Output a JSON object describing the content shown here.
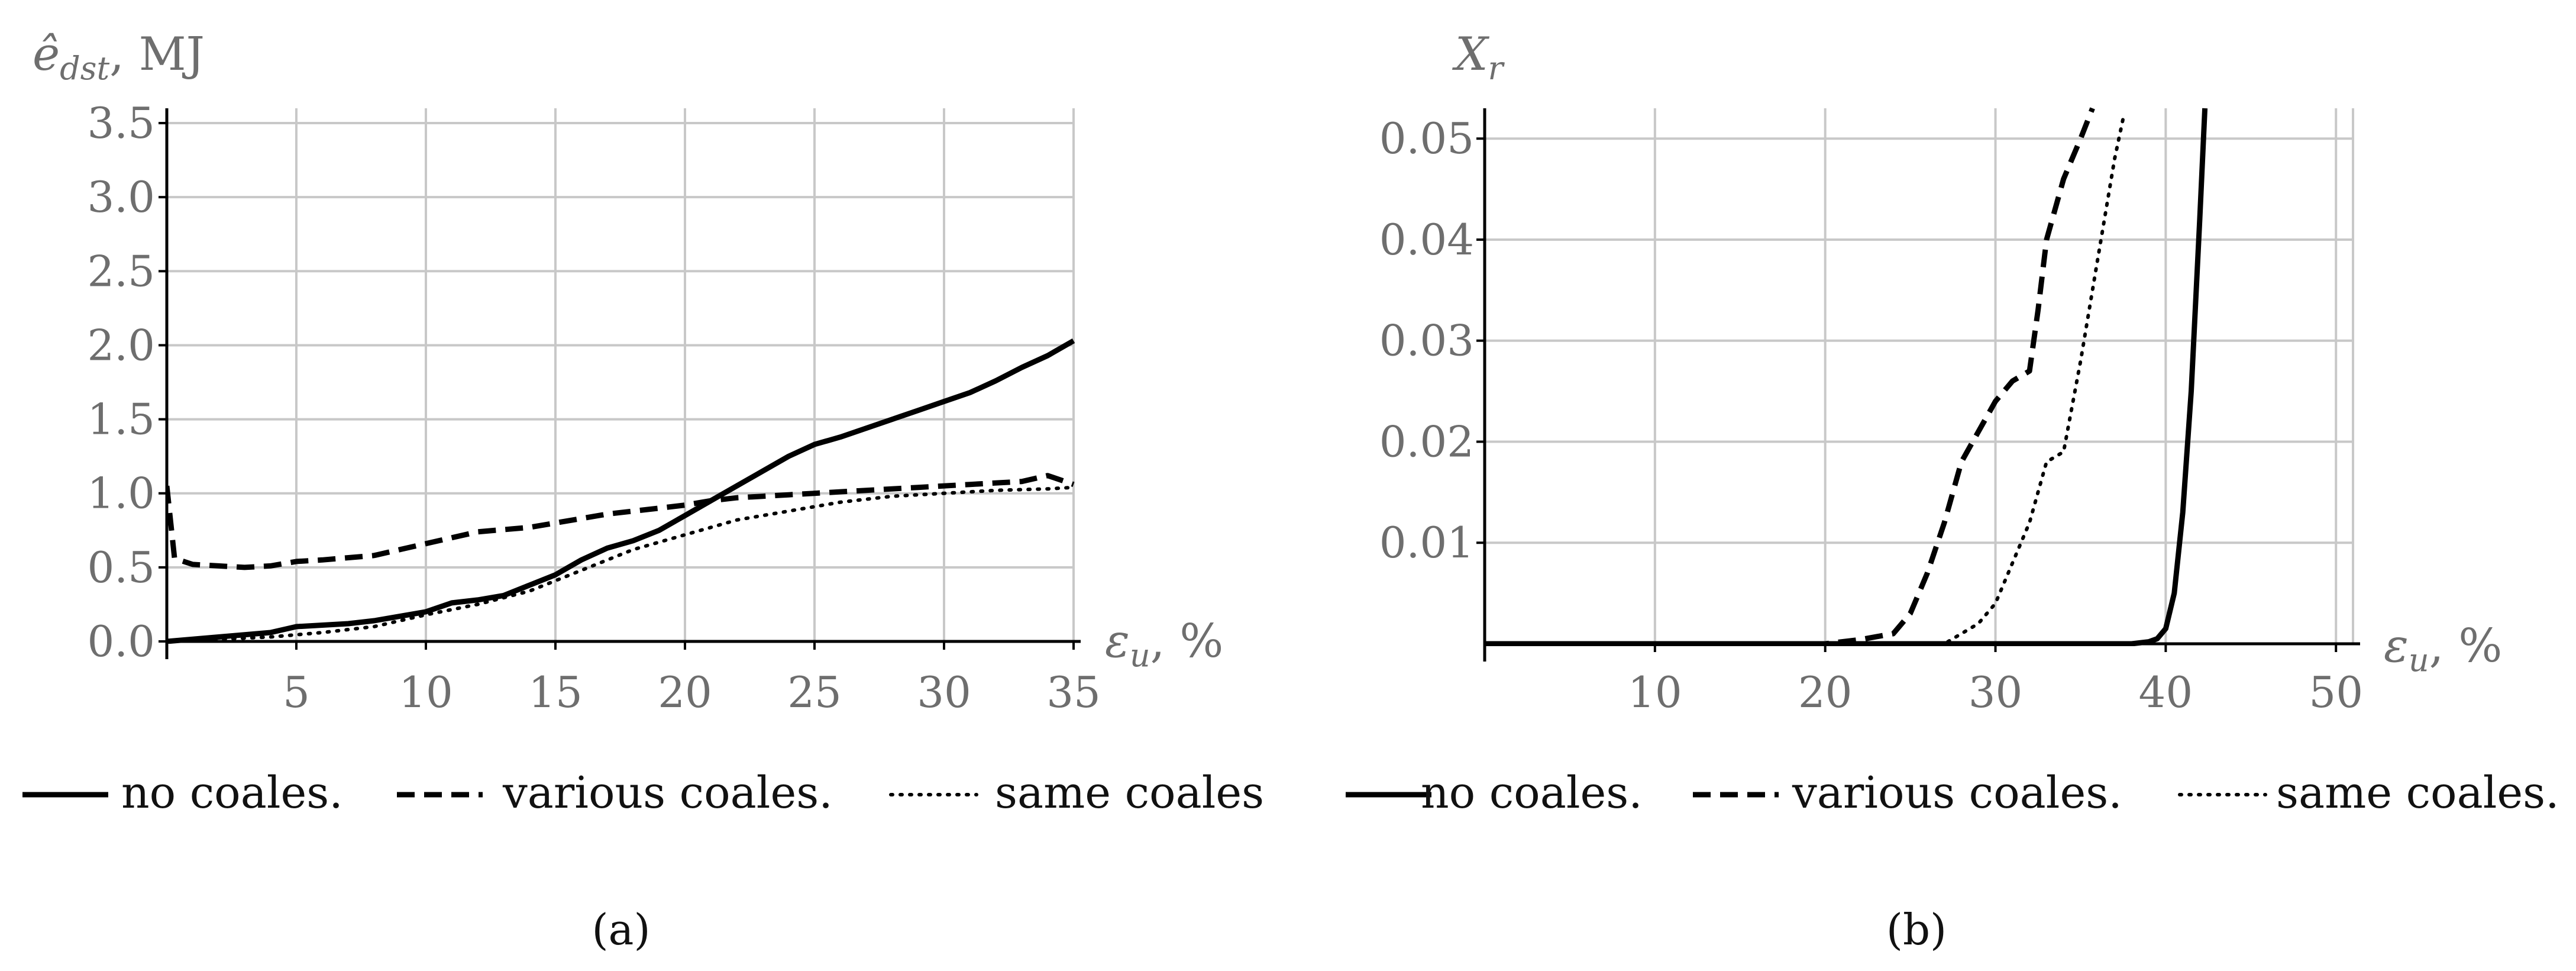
{
  "chart_data": [
    {
      "type": "line",
      "panel": "a",
      "caption": "(a)",
      "ylabel_main": "ê",
      "ylabel_sub": "dst",
      "ylabel_unit": ", MJ",
      "xlabel_main": "ε",
      "xlabel_sub": "u",
      "xlabel_unit": ", %",
      "xlim": [
        0,
        35
      ],
      "ylim": [
        0,
        3.6
      ],
      "xticks": [
        5,
        10,
        15,
        20,
        25,
        30,
        35
      ],
      "xtick_labels": [
        "5",
        "10",
        "15",
        "20",
        "25",
        "30",
        "35"
      ],
      "yticks": [
        0,
        0.5,
        1.0,
        1.5,
        2.0,
        2.5,
        3.0,
        3.5
      ],
      "ytick_labels": [
        "0.0",
        "0.5",
        "1.0",
        "1.5",
        "2.0",
        "2.5",
        "3.0",
        "3.5"
      ],
      "grid": true,
      "legend_position": "bottom",
      "series": [
        {
          "name": "no coales.",
          "style": "solid",
          "x": [
            0,
            2,
            4,
            5,
            7,
            8,
            10,
            11,
            12,
            13,
            14,
            15,
            16,
            17,
            18,
            19,
            20,
            21,
            22,
            23,
            24,
            25,
            26,
            27,
            28,
            29,
            30,
            31,
            32,
            33,
            34,
            35
          ],
          "y": [
            0.0,
            0.03,
            0.06,
            0.1,
            0.12,
            0.14,
            0.2,
            0.26,
            0.28,
            0.31,
            0.38,
            0.45,
            0.55,
            0.63,
            0.68,
            0.75,
            0.85,
            0.95,
            1.05,
            1.15,
            1.25,
            1.33,
            1.38,
            1.44,
            1.5,
            1.56,
            1.62,
            1.68,
            1.76,
            1.85,
            1.93,
            2.03
          ]
        },
        {
          "name": "various coales.",
          "style": "dashed",
          "x": [
            0,
            0.3,
            1,
            2,
            3,
            4,
            5,
            6,
            8,
            9,
            10,
            11,
            12,
            14,
            16,
            17,
            18,
            19,
            20,
            21,
            22,
            23,
            24,
            25,
            27,
            29,
            31,
            33,
            34,
            35
          ],
          "y": [
            1.05,
            0.56,
            0.52,
            0.51,
            0.5,
            0.51,
            0.54,
            0.55,
            0.58,
            0.62,
            0.66,
            0.7,
            0.74,
            0.77,
            0.83,
            0.86,
            0.88,
            0.9,
            0.92,
            0.95,
            0.97,
            0.98,
            0.99,
            1.0,
            1.02,
            1.04,
            1.06,
            1.08,
            1.12,
            1.06
          ]
        },
        {
          "name": "same coales",
          "style": "dotted",
          "x": [
            0,
            4,
            6,
            8,
            10,
            12,
            14,
            16,
            18,
            20,
            22,
            24,
            26,
            28,
            30,
            32,
            34,
            35
          ],
          "y": [
            0.0,
            0.03,
            0.06,
            0.1,
            0.18,
            0.25,
            0.34,
            0.48,
            0.62,
            0.72,
            0.82,
            0.88,
            0.94,
            0.98,
            1.0,
            1.02,
            1.03,
            1.04
          ]
        }
      ]
    },
    {
      "type": "line",
      "panel": "b",
      "caption": "(b)",
      "ylabel_main": "X",
      "ylabel_sub": "r",
      "ylabel_unit": "",
      "xlabel_main": "ε",
      "xlabel_sub": "u",
      "xlabel_unit": ", %",
      "xlim": [
        0,
        51
      ],
      "ylim": [
        0,
        0.053
      ],
      "xticks": [
        10,
        20,
        30,
        40,
        50
      ],
      "xtick_labels": [
        "10",
        "20",
        "30",
        "40",
        "50"
      ],
      "yticks": [
        0.01,
        0.02,
        0.03,
        0.04,
        0.05
      ],
      "ytick_labels": [
        "0.01",
        "0.02",
        "0.03",
        "0.04",
        "0.05"
      ],
      "grid": true,
      "legend_position": "bottom",
      "series": [
        {
          "name": "no coales.",
          "style": "solid",
          "x": [
            0,
            38,
            39,
            39.5,
            40,
            40.5,
            41,
            41.5,
            42,
            42.3
          ],
          "y": [
            0,
            0,
            0.0002,
            0.0005,
            0.0015,
            0.005,
            0.013,
            0.025,
            0.042,
            0.053
          ]
        },
        {
          "name": "various coales.",
          "style": "dashed",
          "x": [
            0,
            20,
            22,
            24,
            25,
            26,
            27,
            28,
            29,
            30,
            31,
            32,
            32.5,
            33,
            34,
            35,
            35.7
          ],
          "y": [
            0,
            0,
            0.0004,
            0.001,
            0.003,
            0.007,
            0.012,
            0.018,
            0.021,
            0.024,
            0.026,
            0.027,
            0.033,
            0.04,
            0.046,
            0.05,
            0.053
          ]
        },
        {
          "name": "same coales.",
          "style": "dotted",
          "x": [
            0,
            27,
            29,
            30,
            31,
            32,
            33,
            34,
            35,
            36,
            37,
            37.5
          ],
          "y": [
            0,
            0,
            0.002,
            0.004,
            0.008,
            0.012,
            0.018,
            0.019,
            0.028,
            0.038,
            0.048,
            0.052
          ]
        }
      ]
    }
  ]
}
